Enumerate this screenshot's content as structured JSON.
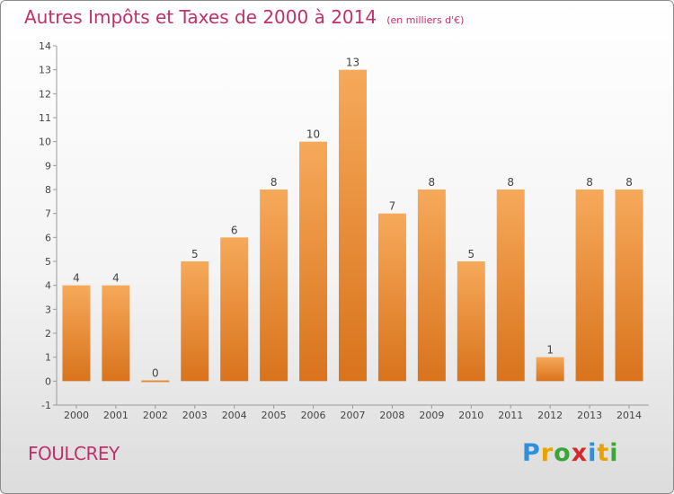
{
  "header": {
    "title": "Autres Impôts et Taxes de 2000 à 2014",
    "subtitle": "(en milliers d'€)"
  },
  "footer": {
    "commune": "FOULCREY",
    "brand": "Proxiti",
    "brand_colors": [
      "#2f8fd8",
      "#e8a300",
      "#3aa63a",
      "#d42a2a",
      "#2f8fd8",
      "#e8a300",
      "#3aa63a"
    ]
  },
  "colors": {
    "bar_light": "#f6a95a",
    "bar_dark": "#d9731c",
    "title": "#c0306a"
  },
  "chart_data": {
    "type": "bar",
    "title": "Autres Impôts et Taxes de 2000 à 2014",
    "subtitle": "(en milliers d'€)",
    "categories": [
      "2000",
      "2001",
      "2002",
      "2003",
      "2004",
      "2005",
      "2006",
      "2007",
      "2008",
      "2009",
      "2010",
      "2011",
      "2012",
      "2013",
      "2014"
    ],
    "values": [
      4,
      4,
      0,
      5,
      6,
      8,
      10,
      13,
      7,
      8,
      5,
      8,
      1,
      8,
      8
    ],
    "data_labels": [
      "4",
      "4",
      "0",
      "5",
      "6",
      "8",
      "10",
      "13",
      "7",
      "8",
      "5",
      "8",
      "1",
      "8",
      "8"
    ],
    "y_ticks": [
      "-1",
      "0",
      "1",
      "2",
      "3",
      "4",
      "5",
      "6",
      "7",
      "8",
      "9",
      "10",
      "11",
      "12",
      "13",
      "14"
    ],
    "ylim": [
      -1,
      14
    ],
    "xlabel": "",
    "ylabel": "",
    "grid": false,
    "legend": "none"
  }
}
